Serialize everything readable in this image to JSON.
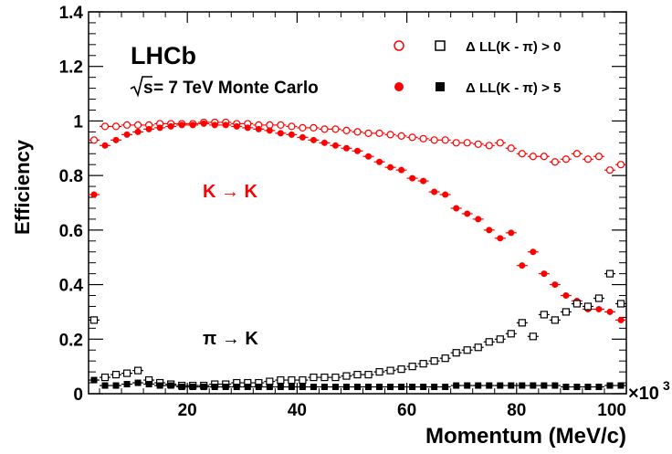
{
  "chart_data": {
    "type": "scatter",
    "title": "",
    "xlabel": "Momentum (MeV/c)",
    "ylabel": "Efficiency",
    "xlim": [
      2000,
      100000
    ],
    "ylim": [
      0,
      1.4
    ],
    "x_multiplier_label": "×10",
    "x_multiplier_exp": "3",
    "x_ticks": [
      20000,
      40000,
      60000,
      80000,
      100000
    ],
    "x_tick_labels": [
      "20",
      "40",
      "60",
      "80",
      "100"
    ],
    "y_ticks": [
      0,
      0.2,
      0.4,
      0.6,
      0.8,
      1,
      1.2,
      1.4
    ],
    "y_tick_labels": [
      "0",
      "0.2",
      "0.4",
      "0.6",
      "0.8",
      "1",
      "1.2",
      "1.4"
    ],
    "grid": false,
    "legend_position": "top-right",
    "annotations": {
      "experiment": "LHCb",
      "energy_sqrt": "s",
      "energy_rest": " = 7 TeV Monte Carlo",
      "kk_label": "K → K",
      "pik_label": "π → K"
    },
    "legend": [
      {
        "marker_a": "open-circle",
        "marker_b": "open-square",
        "text": "Δ LL(K - π) > 0"
      },
      {
        "marker_a": "filled-circle",
        "marker_b": "filled-square",
        "text": "Δ LL(K - π) > 5"
      }
    ],
    "x": [
      3000,
      5000,
      7000,
      9000,
      11000,
      13000,
      15000,
      17000,
      19000,
      21000,
      23000,
      25000,
      27000,
      29000,
      31000,
      33000,
      35000,
      37000,
      39000,
      41000,
      43000,
      45000,
      47000,
      49000,
      51000,
      53000,
      55000,
      57000,
      59000,
      61000,
      63000,
      65000,
      67000,
      69000,
      71000,
      73000,
      75000,
      77000,
      79000,
      81000,
      83000,
      85000,
      87000,
      89000,
      91000,
      93000,
      95000,
      97000,
      99000
    ],
    "series": [
      {
        "values": [
          0.93,
          0.98,
          0.98,
          0.985,
          0.985,
          0.985,
          0.99,
          0.99,
          0.99,
          0.99,
          0.995,
          0.995,
          0.995,
          0.99,
          0.99,
          0.985,
          0.985,
          0.985,
          0.98,
          0.975,
          0.975,
          0.97,
          0.97,
          0.965,
          0.96,
          0.955,
          0.955,
          0.95,
          0.945,
          0.94,
          0.935,
          0.93,
          0.93,
          0.92,
          0.92,
          0.915,
          0.91,
          0.92,
          0.9,
          0.88,
          0.87,
          0.87,
          0.85,
          0.86,
          0.88,
          0.86,
          0.87,
          0.82,
          0.84
        ],
        "color": "#ff0000",
        "marker": "open-circle"
      },
      {
        "values": [
          0.73,
          0.91,
          0.93,
          0.95,
          0.96,
          0.97,
          0.975,
          0.98,
          0.985,
          0.985,
          0.99,
          0.985,
          0.985,
          0.98,
          0.975,
          0.97,
          0.965,
          0.955,
          0.95,
          0.94,
          0.93,
          0.92,
          0.91,
          0.9,
          0.89,
          0.87,
          0.85,
          0.83,
          0.82,
          0.79,
          0.78,
          0.74,
          0.73,
          0.68,
          0.66,
          0.64,
          0.6,
          0.57,
          0.59,
          0.47,
          0.52,
          0.44,
          0.4,
          0.36,
          0.34,
          0.31,
          0.31,
          0.3,
          0.27
        ],
        "color": "#ff0000",
        "marker": "filled-circle"
      },
      {
        "values": [
          0.27,
          0.06,
          0.07,
          0.075,
          0.085,
          0.05,
          0.04,
          0.035,
          0.03,
          0.03,
          0.03,
          0.035,
          0.035,
          0.04,
          0.04,
          0.04,
          0.045,
          0.05,
          0.05,
          0.05,
          0.06,
          0.06,
          0.06,
          0.065,
          0.07,
          0.07,
          0.08,
          0.085,
          0.09,
          0.1,
          0.11,
          0.12,
          0.13,
          0.15,
          0.16,
          0.17,
          0.19,
          0.2,
          0.22,
          0.26,
          0.21,
          0.29,
          0.27,
          0.3,
          0.33,
          0.32,
          0.35,
          0.44,
          0.33
        ],
        "color": "#000000",
        "marker": "open-square"
      },
      {
        "values": [
          0.05,
          0.03,
          0.03,
          0.035,
          0.04,
          0.035,
          0.03,
          0.03,
          0.025,
          0.025,
          0.025,
          0.025,
          0.025,
          0.025,
          0.025,
          0.025,
          0.025,
          0.025,
          0.025,
          0.025,
          0.025,
          0.025,
          0.025,
          0.025,
          0.025,
          0.025,
          0.025,
          0.025,
          0.025,
          0.025,
          0.025,
          0.025,
          0.025,
          0.03,
          0.03,
          0.03,
          0.03,
          0.03,
          0.03,
          0.03,
          0.03,
          0.03,
          0.03,
          0.025,
          0.025,
          0.025,
          0.025,
          0.03,
          0.03
        ],
        "color": "#000000",
        "marker": "filled-square"
      }
    ]
  }
}
